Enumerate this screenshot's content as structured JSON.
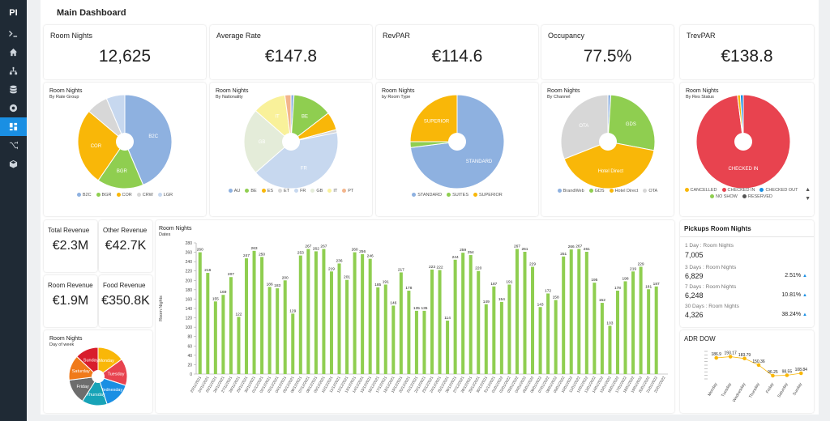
{
  "app": {
    "logo": "PI",
    "page_title": "Main Dashboard"
  },
  "sidebar": {
    "items": [
      {
        "icon": "terminal-icon"
      },
      {
        "icon": "home-icon"
      },
      {
        "icon": "sitemap-icon"
      },
      {
        "icon": "database-icon"
      },
      {
        "icon": "settings-icon"
      },
      {
        "icon": "dashboard-icon",
        "active": true
      },
      {
        "icon": "shuffle-icon"
      },
      {
        "icon": "box-icon"
      }
    ]
  },
  "kpis": [
    {
      "label": "Room Nights",
      "value": "12,625"
    },
    {
      "label": "Average Rate",
      "value": "€147.8"
    },
    {
      "label": "RevPAR",
      "value": "€114.6"
    },
    {
      "label": "Occupancy",
      "value": "77.5%"
    },
    {
      "label": "TrevPAR",
      "value": "€138.8"
    }
  ],
  "small_kpis": [
    {
      "label": "Total Revenue",
      "value": "€2.3M"
    },
    {
      "label": "Other Revenue",
      "value": "€42.7K"
    },
    {
      "label": "Room Revenue",
      "value": "€1.9M"
    },
    {
      "label": "Food Revenue",
      "value": "€350.8K"
    }
  ],
  "pies": [
    {
      "title": "Room Nights",
      "subtitle": "By Rate Group",
      "slices": [
        {
          "label": "B2C",
          "value": 41,
          "color": "#8eb1e0"
        },
        {
          "label": "BGR",
          "value": 15,
          "color": "#8fce50"
        },
        {
          "label": "COR",
          "value": 25,
          "color": "#f9b708"
        },
        {
          "label": "CRW",
          "value": 7,
          "color": "#d7d7d7"
        },
        {
          "label": "LGR",
          "value": 6,
          "color": "#c7d8ef"
        }
      ],
      "legend": [
        "B2C",
        "BGR",
        "COR",
        "CRW",
        "LGR"
      ],
      "legend_colors": [
        "#8eb1e0",
        "#8fce50",
        "#f9b708",
        "#d7d7d7",
        "#c7d8ef"
      ]
    },
    {
      "title": "Room Nights",
      "subtitle": "By Nationality",
      "slices": [
        {
          "label": "AU",
          "value": 1,
          "color": "#8eb1e0"
        },
        {
          "label": "BE",
          "value": 13,
          "color": "#8fce50"
        },
        {
          "label": "ES",
          "value": 6,
          "color": "#f9b708"
        },
        {
          "label": "ET",
          "value": 1,
          "color": "#d7d7d7"
        },
        {
          "label": "FR",
          "value": 40,
          "color": "#c7d8ef"
        },
        {
          "label": "GB",
          "value": 22,
          "color": "#e4ecd9"
        },
        {
          "label": "IT",
          "value": 11,
          "color": "#f9f19a"
        },
        {
          "label": "PT",
          "value": 2,
          "color": "#f3b58c"
        }
      ],
      "legend": [
        "AU",
        "BE",
        "ES",
        "ET",
        "FR",
        "GB",
        "IT",
        "PT"
      ],
      "legend_colors": [
        "#8eb1e0",
        "#8fce50",
        "#f9b708",
        "#d7d7d7",
        "#c7d8ef",
        "#e4ecd9",
        "#f9f19a",
        "#f3b58c"
      ]
    },
    {
      "title": "Room Nights",
      "subtitle": "by Room Type",
      "slices": [
        {
          "label": "STANDARD",
          "value": 73,
          "color": "#8eb1e0"
        },
        {
          "label": "SUITES",
          "value": 2,
          "color": "#8fce50"
        },
        {
          "label": "SUPERIOR",
          "value": 25,
          "color": "#f9b708"
        }
      ],
      "legend": [
        "STANDARD",
        "SUITES",
        "SUPERIOR"
      ],
      "legend_colors": [
        "#8eb1e0",
        "#8fce50",
        "#f9b708"
      ]
    },
    {
      "title": "Room Nights",
      "subtitle": "By Channel",
      "slices": [
        {
          "label": "BrandWeb",
          "value": 1,
          "color": "#8eb1e0"
        },
        {
          "label": "GDS",
          "value": 27,
          "color": "#8fce50"
        },
        {
          "label": "Hotel Direct",
          "value": 41,
          "color": "#f9b708"
        },
        {
          "label": "OTA",
          "value": 31,
          "color": "#d7d7d7"
        }
      ],
      "legend": [
        "BrandWeb",
        "GDS",
        "Hotel Direct",
        "OTA"
      ],
      "legend_colors": [
        "#8eb1e0",
        "#8fce50",
        "#f9b708",
        "#d7d7d7"
      ]
    },
    {
      "title": "Room Nights",
      "subtitle": "By Res Status",
      "slices": [
        {
          "label": "CHECKED IN",
          "value": 98,
          "color": "#e8434f"
        },
        {
          "label": "CANCELLED",
          "value": 1,
          "color": "#f9b708"
        },
        {
          "label": "CHECKED OUT",
          "value": 1,
          "color": "#1a8fe3"
        }
      ],
      "legend": [
        "CANCELLED",
        "CHECKED IN",
        "CHECKED OUT",
        "NO SHOW",
        "RESERVED"
      ],
      "legend_colors": [
        "#f9b708",
        "#e8434f",
        "#1a8fe3",
        "#8fce50",
        "#555555"
      ]
    }
  ],
  "pie_dow": {
    "title": "Room Nights",
    "subtitle": "Day of week",
    "slices": [
      {
        "label": "Monday",
        "value": 15,
        "color": "#f9b708"
      },
      {
        "label": "Tuesday",
        "value": 15,
        "color": "#e8434f"
      },
      {
        "label": "Wednesday",
        "value": 15,
        "color": "#1a8fe3"
      },
      {
        "label": "Thursday",
        "value": 14,
        "color": "#18a3b7"
      },
      {
        "label": "Friday",
        "value": 14,
        "color": "#6d6d6d"
      },
      {
        "label": "Saturday",
        "value": 14,
        "color": "#f07a1a"
      },
      {
        "label": "Sunday",
        "value": 13,
        "color": "#d81e2c"
      }
    ]
  },
  "pickups": {
    "title": "Pickups Room Nights",
    "rows": [
      {
        "label": "1 Day : Room Nights",
        "value": "7,005",
        "pct": ""
      },
      {
        "label": "3 Days : Room Nights",
        "value": "6,829",
        "pct": "2.51%"
      },
      {
        "label": "7 Days : Room Nights",
        "value": "6,248",
        "pct": "10.81%"
      },
      {
        "label": "30 Days : Room Nights",
        "value": "4,326",
        "pct": "38.24%"
      }
    ]
  },
  "adr_dow": {
    "title": "ADR DOW",
    "chart_data": {
      "type": "line",
      "categories": [
        "Monday",
        "Tuesday",
        "Wednesday",
        "Thursday",
        "Friday",
        "Saturday",
        "Sunday"
      ],
      "values": [
        186.9,
        193.17,
        183.79,
        150.36,
        96.25,
        98.55,
        108.84
      ],
      "labels": [
        "186.9",
        "193.17",
        "183.79",
        "150.36",
        "96.25",
        "98.55",
        "108.84"
      ]
    }
  },
  "chart_data": {
    "type": "bar",
    "title": "Room Nights",
    "subtitle": "Dates",
    "ylabel": "Room Nights",
    "ylim": [
      0,
      280
    ],
    "yticks": [
      0,
      20,
      40,
      60,
      80,
      100,
      120,
      140,
      160,
      180,
      200,
      220,
      240,
      260,
      280
    ],
    "color": "#8fce50",
    "categories": [
      "23/11/2021",
      "24/11/2021",
      "25/11/2021",
      "26/11/2021",
      "27/11/2021",
      "28/11/2021",
      "29/11/2021",
      "30/11/2021",
      "01/12/2021",
      "02/12/2021",
      "03/12/2021",
      "04/12/2021",
      "05/12/2021",
      "06/12/2021",
      "07/12/2021",
      "08/12/2021",
      "09/12/2021",
      "10/12/2021",
      "11/12/2021",
      "12/12/2021",
      "13/12/2021",
      "14/12/2021",
      "15/12/2021",
      "16/12/2021",
      "17/12/2021",
      "18/12/2021",
      "19/12/2021",
      "20/12/2021",
      "21/12/2021",
      "22/12/2021",
      "23/12/2021",
      "24/12/2021",
      "25/12/2021",
      "26/12/2021",
      "27/12/2021",
      "28/12/2021",
      "29/12/2021",
      "30/12/2021",
      "31/12/2021",
      "01/01/2022",
      "02/01/2022",
      "03/01/2022",
      "04/01/2022",
      "05/01/2022",
      "06/01/2022",
      "07/01/2022",
      "08/01/2022",
      "09/01/2022",
      "10/01/2022",
      "11/01/2022",
      "12/01/2022",
      "13/01/2022",
      "14/01/2022",
      "15/01/2022",
      "16/01/2022",
      "17/01/2022",
      "18/01/2022",
      "19/01/2022",
      "20/01/2022",
      "21/01/2022",
      "22/01/2022"
    ],
    "values": [
      260,
      216,
      155,
      169,
      207,
      122,
      247,
      263,
      250,
      186,
      183,
      200,
      129,
      253,
      267,
      262,
      267,
      219,
      236,
      201,
      260,
      256,
      246,
      185,
      191,
      146,
      217,
      178,
      135,
      135,
      223,
      222,
      114,
      244,
      259,
      254,
      220,
      149,
      187,
      154,
      191,
      267,
      261,
      229,
      143,
      172,
      158,
      251,
      266,
      267,
      261,
      195,
      152,
      103,
      178,
      198,
      219,
      229,
      181,
      187,
      0
    ],
    "value_labels": [
      "260",
      "216",
      "155",
      "169",
      "207",
      "122",
      "247",
      "263",
      "250",
      "186",
      "183",
      "200",
      "129",
      "253",
      "267",
      "262",
      "267",
      "219",
      "236",
      "201",
      "260",
      "256",
      "246",
      "185",
      "191",
      "146",
      "217",
      "178",
      "135",
      "135",
      "223",
      "222",
      "114",
      "244",
      "259",
      "254",
      "220",
      "149",
      "187",
      "154",
      "191",
      "267",
      "261",
      "229",
      "143",
      "172",
      "158",
      "251",
      "266",
      "267",
      "261",
      "195",
      "152",
      "103",
      "178",
      "198",
      "219",
      "229",
      "181",
      "187",
      ""
    ]
  }
}
